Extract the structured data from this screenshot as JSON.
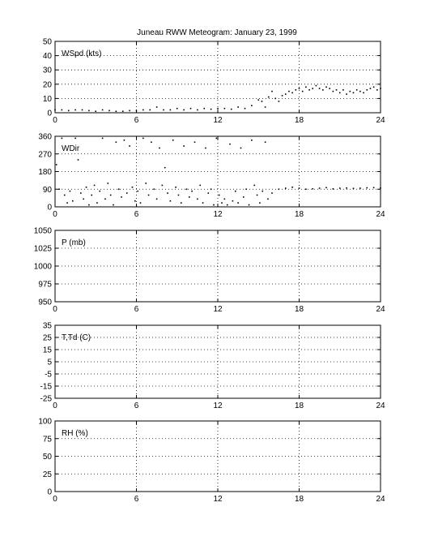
{
  "title": "Juneau RWW Meteogram:    January 23, 1999",
  "chart_data": [
    {
      "type": "scatter",
      "label": "WSpd (kts)",
      "xlim": [
        0,
        24
      ],
      "ylim": [
        0,
        50
      ],
      "xticks": [
        "0",
        "6",
        "12",
        "18",
        "24"
      ],
      "yticks": [
        "0",
        "10",
        "20",
        "30",
        "40",
        "50"
      ],
      "grid": true,
      "series": [
        {
          "x": [
            0,
            0.5,
            1,
            1.5,
            2,
            2.5,
            3,
            3.5,
            4,
            4.5,
            5,
            5.5,
            6,
            6.5,
            7,
            7.5,
            8,
            8.5,
            9,
            9.5,
            10,
            10.5,
            11,
            11.5,
            12,
            12.5,
            13,
            13.5,
            14,
            14.5,
            15,
            15.25,
            15.5,
            15.75,
            16,
            16.25,
            16.5,
            16.75,
            17,
            17.25,
            17.5,
            17.75,
            18,
            18.25,
            18.5,
            18.75,
            19,
            19.25,
            19.5,
            19.75,
            20,
            20.25,
            20.5,
            20.75,
            21,
            21.25,
            21.5,
            21.75,
            22,
            22.25,
            22.5,
            22.75,
            23,
            23.25,
            23.5,
            23.75,
            24
          ],
          "y": [
            2,
            2,
            1.5,
            2,
            2,
            1.5,
            1,
            2,
            1.5,
            1,
            1,
            1.5,
            1.5,
            2,
            2,
            4,
            2,
            2,
            3,
            2,
            3,
            2,
            3,
            2.5,
            3,
            3,
            2.5,
            4,
            3,
            5,
            9,
            8,
            4,
            11,
            15,
            10,
            8,
            12,
            13,
            15,
            14,
            16,
            17,
            15,
            18,
            16,
            17,
            19,
            17,
            16,
            18,
            17,
            15,
            16,
            14,
            16,
            13,
            15,
            14,
            16,
            15,
            14,
            16,
            17,
            18,
            16,
            17
          ]
        }
      ]
    },
    {
      "type": "scatter",
      "label": "WDir",
      "xlim": [
        0,
        24
      ],
      "ylim": [
        0,
        360
      ],
      "xticks": [
        "0",
        "6",
        "12",
        "18",
        "24"
      ],
      "yticks": [
        "0",
        "90",
        "180",
        "270",
        "360"
      ],
      "grid": true,
      "series": [
        {
          "x": [
            0.1,
            0.3,
            0.5,
            0.7,
            0.9,
            1.1,
            1.3,
            1.5,
            1.7,
            1.9,
            2.1,
            2.3,
            2.5,
            2.7,
            2.9,
            3.1,
            3.3,
            3.5,
            3.7,
            3.9,
            4.1,
            4.3,
            4.5,
            4.7,
            4.9,
            5.1,
            5.3,
            5.5,
            5.7,
            5.9,
            6.1,
            6.3,
            6.5,
            6.7,
            6.9,
            7.1,
            7.3,
            7.5,
            7.7,
            7.9,
            8.1,
            8.3,
            8.5,
            8.7,
            8.9,
            9.1,
            9.3,
            9.5,
            9.7,
            9.9,
            10.1,
            10.3,
            10.5,
            10.7,
            10.9,
            11.1,
            11.3,
            11.5,
            11.7,
            11.9,
            12.1,
            12.3,
            12.5,
            12.7,
            12.9,
            13.1,
            13.3,
            13.5,
            13.7,
            13.9,
            14.1,
            14.3,
            14.5,
            14.7,
            14.9,
            15.1,
            15.3,
            15.5,
            15.7,
            16,
            16.5,
            17,
            17.5,
            18,
            18.5,
            19,
            19.5,
            20,
            20.5,
            21,
            21.5,
            22,
            22.5,
            23,
            23.5,
            24
          ],
          "y": [
            215,
            90,
            350,
            60,
            20,
            80,
            30,
            350,
            240,
            70,
            40,
            100,
            10,
            60,
            110,
            20,
            80,
            350,
            40,
            120,
            60,
            10,
            330,
            90,
            50,
            340,
            70,
            310,
            100,
            30,
            80,
            20,
            350,
            120,
            60,
            330,
            90,
            40,
            300,
            110,
            200,
            70,
            30,
            340,
            100,
            60,
            20,
            310,
            90,
            50,
            80,
            330,
            40,
            110,
            20,
            300,
            70,
            90,
            10,
            350,
            60,
            20,
            40,
            10,
            320,
            30,
            80,
            20,
            300,
            50,
            90,
            10,
            340,
            110,
            60,
            20,
            80,
            330,
            40,
            70,
            90,
            95,
            100,
            95,
            90,
            92,
            95,
            98,
            92,
            95,
            96,
            94,
            95,
            97,
            98,
            96
          ]
        }
      ]
    },
    {
      "type": "scatter",
      "label": "P (mb)",
      "xlim": [
        0,
        24
      ],
      "ylim": [
        950,
        1050
      ],
      "xticks": [
        "0",
        "6",
        "12",
        "18",
        "24"
      ],
      "yticks": [
        "950",
        "975",
        "1000",
        "1025",
        "1050"
      ],
      "grid": true,
      "series": []
    },
    {
      "type": "scatter",
      "label": "T,Td (C)",
      "xlim": [
        0,
        24
      ],
      "ylim": [
        -25,
        35
      ],
      "xticks": [
        "0",
        "6",
        "12",
        "18",
        "24"
      ],
      "yticks": [
        "-25",
        "-15",
        "-5",
        "5",
        "15",
        "25",
        "35"
      ],
      "grid": true,
      "series": []
    },
    {
      "type": "scatter",
      "label": "RH (%)",
      "xlim": [
        0,
        24
      ],
      "ylim": [
        0,
        100
      ],
      "xticks": [
        "0",
        "6",
        "12",
        "18",
        "24"
      ],
      "yticks": [
        "0",
        "25",
        "50",
        "75",
        "100"
      ],
      "grid": true,
      "series": []
    }
  ]
}
